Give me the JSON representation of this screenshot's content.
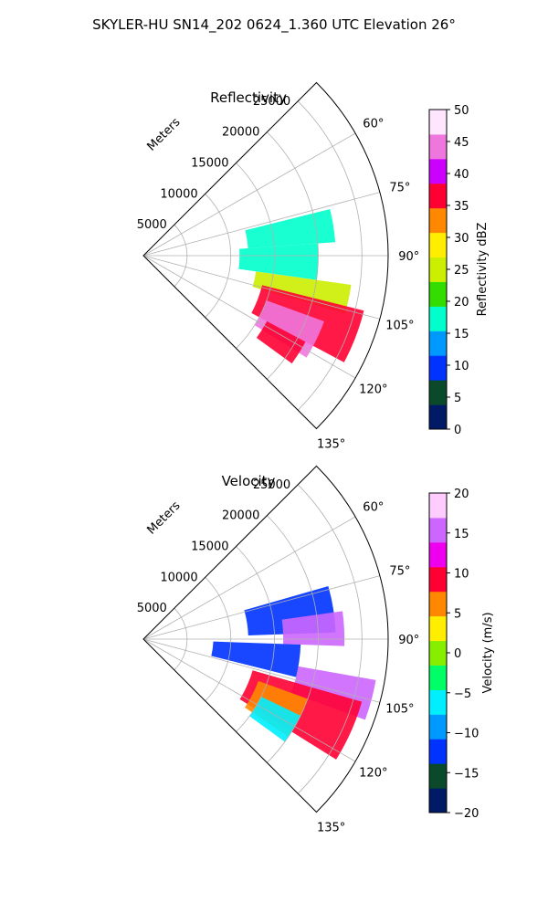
{
  "figure": {
    "suptitle": "SKYLER-HU  SN14_202  0624_1.360 UTC Elevation 26°"
  },
  "chart_data": [
    {
      "type": "heatmap",
      "projection": "polar-sector",
      "title": "Reflectivity",
      "radial_axis_label": "Meters",
      "radial_ticks": [
        "5000",
        "10000",
        "15000",
        "20000",
        "25000"
      ],
      "radial_tick_values": [
        5000,
        10000,
        15000,
        20000,
        25000
      ],
      "r_max": 28000,
      "azimuth_range_deg": [
        45,
        135
      ],
      "azimuth_ticks": [
        "60°",
        "75°",
        "90°",
        "105°",
        "120°",
        "135°"
      ],
      "azimuth_tick_values": [
        60,
        75,
        90,
        105,
        120,
        135
      ],
      "grid": true,
      "colorbar": {
        "label": "Reflectivity dBZ",
        "vmin": 0,
        "vmax": 50,
        "ticks": [
          "0",
          "5",
          "10",
          "15",
          "20",
          "25",
          "30",
          "35",
          "40",
          "45",
          "50"
        ],
        "tick_values": [
          0,
          5,
          10,
          15,
          20,
          25,
          30,
          35,
          40,
          45,
          50
        ],
        "colors": [
          "#001a66",
          "#0a4a2a",
          "#0033ff",
          "#0099ff",
          "#00ffcc",
          "#33dd00",
          "#ccee00",
          "#ffee00",
          "#ff8800",
          "#ff0033",
          "#cc00ff",
          "#ee77dd",
          "#ffe6ff"
        ]
      },
      "echo_regions": [
        {
          "az": [
            76,
            86
          ],
          "r": [
            12000,
            22000
          ],
          "value": 16
        },
        {
          "az": [
            86,
            98
          ],
          "r": [
            11000,
            20000
          ],
          "value": 18
        },
        {
          "az": [
            98,
            106
          ],
          "r": [
            13000,
            24000
          ],
          "value": 25
        },
        {
          "az": [
            104,
            118
          ],
          "r": [
            14000,
            26000
          ],
          "value": 35
        },
        {
          "az": [
            110,
            122
          ],
          "r": [
            15000,
            22000
          ],
          "value": 44
        },
        {
          "az": [
            118,
            126
          ],
          "r": [
            16000,
            21000
          ],
          "value": 38
        }
      ]
    },
    {
      "type": "heatmap",
      "projection": "polar-sector",
      "title": "Velocity",
      "radial_axis_label": "Meters",
      "radial_ticks": [
        "5000",
        "10000",
        "15000",
        "20000",
        "25000"
      ],
      "radial_tick_values": [
        5000,
        10000,
        15000,
        20000,
        25000
      ],
      "r_max": 28000,
      "azimuth_range_deg": [
        45,
        135
      ],
      "azimuth_ticks": [
        "60°",
        "75°",
        "90°",
        "105°",
        "120°",
        "135°"
      ],
      "azimuth_tick_values": [
        60,
        75,
        90,
        105,
        120,
        135
      ],
      "grid": true,
      "colorbar": {
        "label": "Velocity (m/s)",
        "vmin": -20,
        "vmax": 20,
        "ticks": [
          "−20",
          "−15",
          "−10",
          "−5",
          "0",
          "5",
          "10",
          "15",
          "20"
        ],
        "tick_values": [
          -20,
          -15,
          -10,
          -5,
          0,
          5,
          10,
          15,
          20
        ],
        "colors": [
          "#001a66",
          "#0a4a2a",
          "#0033ff",
          "#0099ff",
          "#00eeff",
          "#00ff66",
          "#88ee00",
          "#ffee00",
          "#ff8800",
          "#ff0033",
          "#ee00ee",
          "#cc66ff",
          "#ffccff"
        ]
      },
      "echo_regions": [
        {
          "az": [
            74,
            88
          ],
          "r": [
            12000,
            22000
          ],
          "value": -11
        },
        {
          "az": [
            82,
            92
          ],
          "r": [
            16000,
            23000
          ],
          "value": 15
        },
        {
          "az": [
            92,
            104
          ],
          "r": [
            8000,
            18000
          ],
          "value": -11
        },
        {
          "az": [
            100,
            110
          ],
          "r": [
            18000,
            27000
          ],
          "value": 14
        },
        {
          "az": [
            106,
            122
          ],
          "r": [
            13000,
            26000
          ],
          "value": 10
        },
        {
          "az": [
            110,
            124
          ],
          "r": [
            14000,
            20000
          ],
          "value": 5
        },
        {
          "az": [
            116,
            126
          ],
          "r": [
            15000,
            20000
          ],
          "value": -7
        }
      ]
    }
  ]
}
